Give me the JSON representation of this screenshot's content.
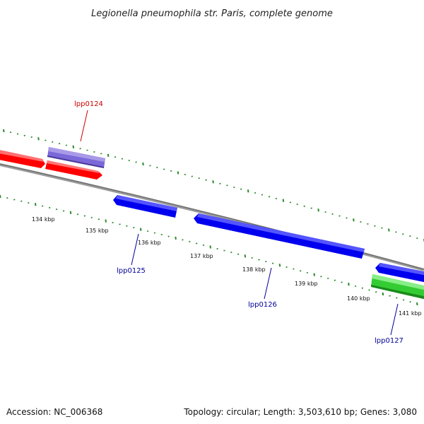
{
  "title": "Legionella pneumophila str. Paris, complete genome",
  "ticks": [
    "134 kbp",
    "135 kbp",
    "136 kbp",
    "137 kbp",
    "138 kbp",
    "139 kbp",
    "140 kbp",
    "141 kbp"
  ],
  "genes": [
    {
      "label": "lpp0124",
      "color": "#cc0000"
    },
    {
      "label": "lpp0125",
      "color": "#000099"
    },
    {
      "label": "lpp0126",
      "color": "#000099"
    },
    {
      "label": "lpp0127",
      "color": "#000099"
    }
  ],
  "colors": {
    "forward": "#ff0000",
    "reverse": "#0000ee",
    "highlight": "#7b68d9",
    "green": "#33cc33",
    "backbone": "#888888",
    "tick": "#2a8a2a"
  },
  "footer": {
    "accession": "Accession: NC_006368",
    "summary": "Topology: circular; Length: 3,503,610 bp; Genes: 3,080"
  }
}
